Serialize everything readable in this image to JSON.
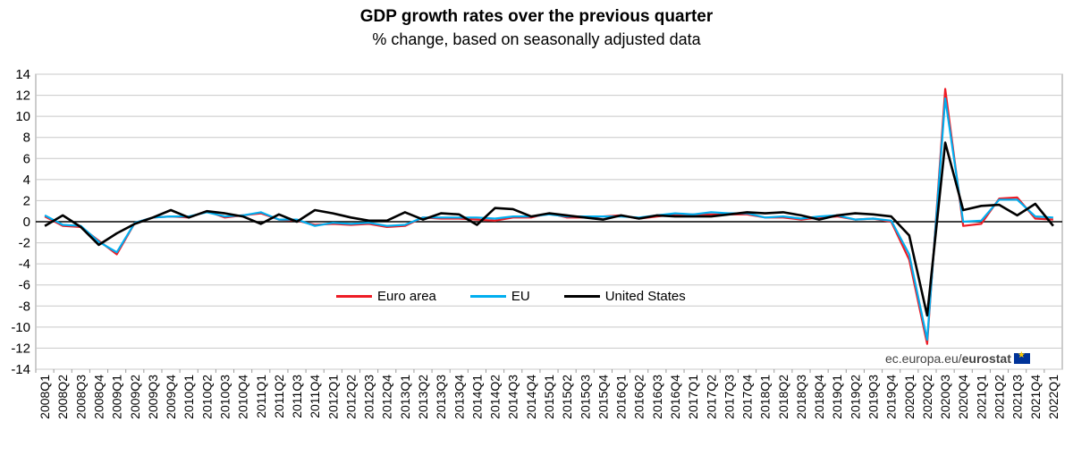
{
  "chart_data": {
    "type": "line",
    "title": "GDP growth rates over the previous quarter",
    "subtitle": "% change, based on seasonally adjusted data",
    "xlabel": "",
    "ylabel": "",
    "ylim": [
      -14,
      14
    ],
    "yticks": [
      14,
      12,
      10,
      8,
      6,
      4,
      2,
      0,
      -2,
      -4,
      -6,
      -8,
      -10,
      -12,
      -14
    ],
    "categories": [
      "2008Q1",
      "2008Q2",
      "2008Q3",
      "2008Q4",
      "2009Q1",
      "2009Q2",
      "2009Q3",
      "2009Q4",
      "2010Q1",
      "2010Q2",
      "2010Q3",
      "2010Q4",
      "2011Q1",
      "2011Q2",
      "2011Q3",
      "2011Q4",
      "2012Q1",
      "2012Q2",
      "2012Q3",
      "2012Q4",
      "2013Q1",
      "2013Q2",
      "2013Q3",
      "2013Q4",
      "2014Q1",
      "2014Q2",
      "2014Q3",
      "2014Q4",
      "2015Q1",
      "2015Q2",
      "2015Q3",
      "2015Q4",
      "2016Q1",
      "2016Q2",
      "2016Q3",
      "2016Q4",
      "2017Q1",
      "2017Q2",
      "2017Q3",
      "2017Q4",
      "2018Q1",
      "2018Q2",
      "2018Q3",
      "2018Q4",
      "2019Q1",
      "2019Q2",
      "2019Q3",
      "2019Q4",
      "2020Q1",
      "2020Q2",
      "2020Q3",
      "2020Q4",
      "2021Q1",
      "2021Q2",
      "2021Q3",
      "2021Q4",
      "2022Q1"
    ],
    "series": [
      {
        "name": "Euro area",
        "color": "#ee1c25",
        "values": [
          0.5,
          -0.4,
          -0.5,
          -1.8,
          -3.1,
          -0.1,
          0.4,
          0.5,
          0.4,
          1.0,
          0.4,
          0.6,
          0.8,
          0.2,
          0.1,
          -0.3,
          -0.2,
          -0.3,
          -0.2,
          -0.5,
          -0.4,
          0.4,
          0.3,
          0.3,
          0.2,
          0.1,
          0.4,
          0.4,
          0.8,
          0.4,
          0.4,
          0.5,
          0.6,
          0.3,
          0.5,
          0.7,
          0.7,
          0.7,
          0.7,
          0.7,
          0.4,
          0.4,
          0.2,
          0.4,
          0.5,
          0.2,
          0.3,
          0.0,
          -3.6,
          -11.6,
          12.6,
          -0.4,
          -0.2,
          2.2,
          2.3,
          0.3,
          0.2
        ]
      },
      {
        "name": "EU",
        "color": "#00aeef",
        "values": [
          0.6,
          -0.3,
          -0.4,
          -1.9,
          -2.9,
          -0.1,
          0.4,
          0.5,
          0.5,
          0.9,
          0.5,
          0.6,
          0.9,
          0.2,
          0.2,
          -0.4,
          -0.1,
          -0.2,
          -0.1,
          -0.4,
          -0.3,
          0.4,
          0.4,
          0.4,
          0.4,
          0.3,
          0.5,
          0.5,
          0.7,
          0.5,
          0.5,
          0.5,
          0.5,
          0.4,
          0.6,
          0.8,
          0.7,
          0.9,
          0.8,
          0.8,
          0.4,
          0.5,
          0.3,
          0.5,
          0.6,
          0.2,
          0.3,
          0.1,
          -3.1,
          -11.2,
          11.7,
          0.0,
          0.1,
          2.1,
          2.1,
          0.5,
          0.4
        ]
      },
      {
        "name": "United States",
        "color": "#000000",
        "values": [
          -0.4,
          0.6,
          -0.5,
          -2.2,
          -1.1,
          -0.2,
          0.4,
          1.1,
          0.4,
          1.0,
          0.8,
          0.5,
          -0.2,
          0.7,
          0.0,
          1.1,
          0.8,
          0.4,
          0.1,
          0.1,
          0.9,
          0.2,
          0.8,
          0.7,
          -0.3,
          1.3,
          1.2,
          0.5,
          0.8,
          0.6,
          0.4,
          0.2,
          0.6,
          0.3,
          0.6,
          0.5,
          0.5,
          0.5,
          0.7,
          0.9,
          0.8,
          0.9,
          0.6,
          0.2,
          0.6,
          0.8,
          0.7,
          0.5,
          -1.3,
          -8.9,
          7.5,
          1.1,
          1.5,
          1.6,
          0.6,
          1.7,
          -0.4
        ]
      }
    ],
    "legend": [
      "Euro area",
      "EU",
      "United States"
    ]
  },
  "source": {
    "prefix": "ec.europa.eu/",
    "brand": "eurostat"
  }
}
